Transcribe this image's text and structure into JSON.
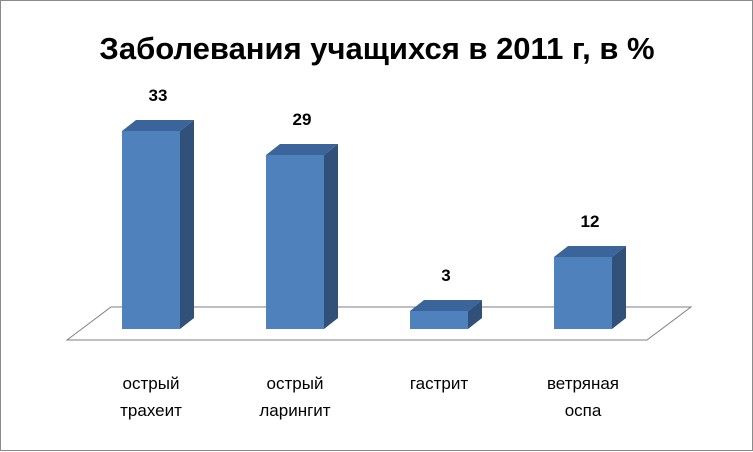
{
  "chart_data": {
    "type": "bar",
    "title": "Заболевания учащихся в 2011 г, в %",
    "categories": [
      [
        "острый",
        "трахеит"
      ],
      [
        "острый",
        "ларингит"
      ],
      [
        "гастрит"
      ],
      [
        "ветряная",
        "оспа"
      ]
    ],
    "values": [
      33,
      29,
      3,
      12
    ],
    "data_labels": [
      "33",
      "29",
      "3",
      "12"
    ],
    "ylim": [
      0,
      35
    ],
    "grid": false,
    "legend": "none",
    "bar_color": "#4f81bd",
    "bar_side_color": "#31507a",
    "bar_top_color": "#3b649a"
  }
}
